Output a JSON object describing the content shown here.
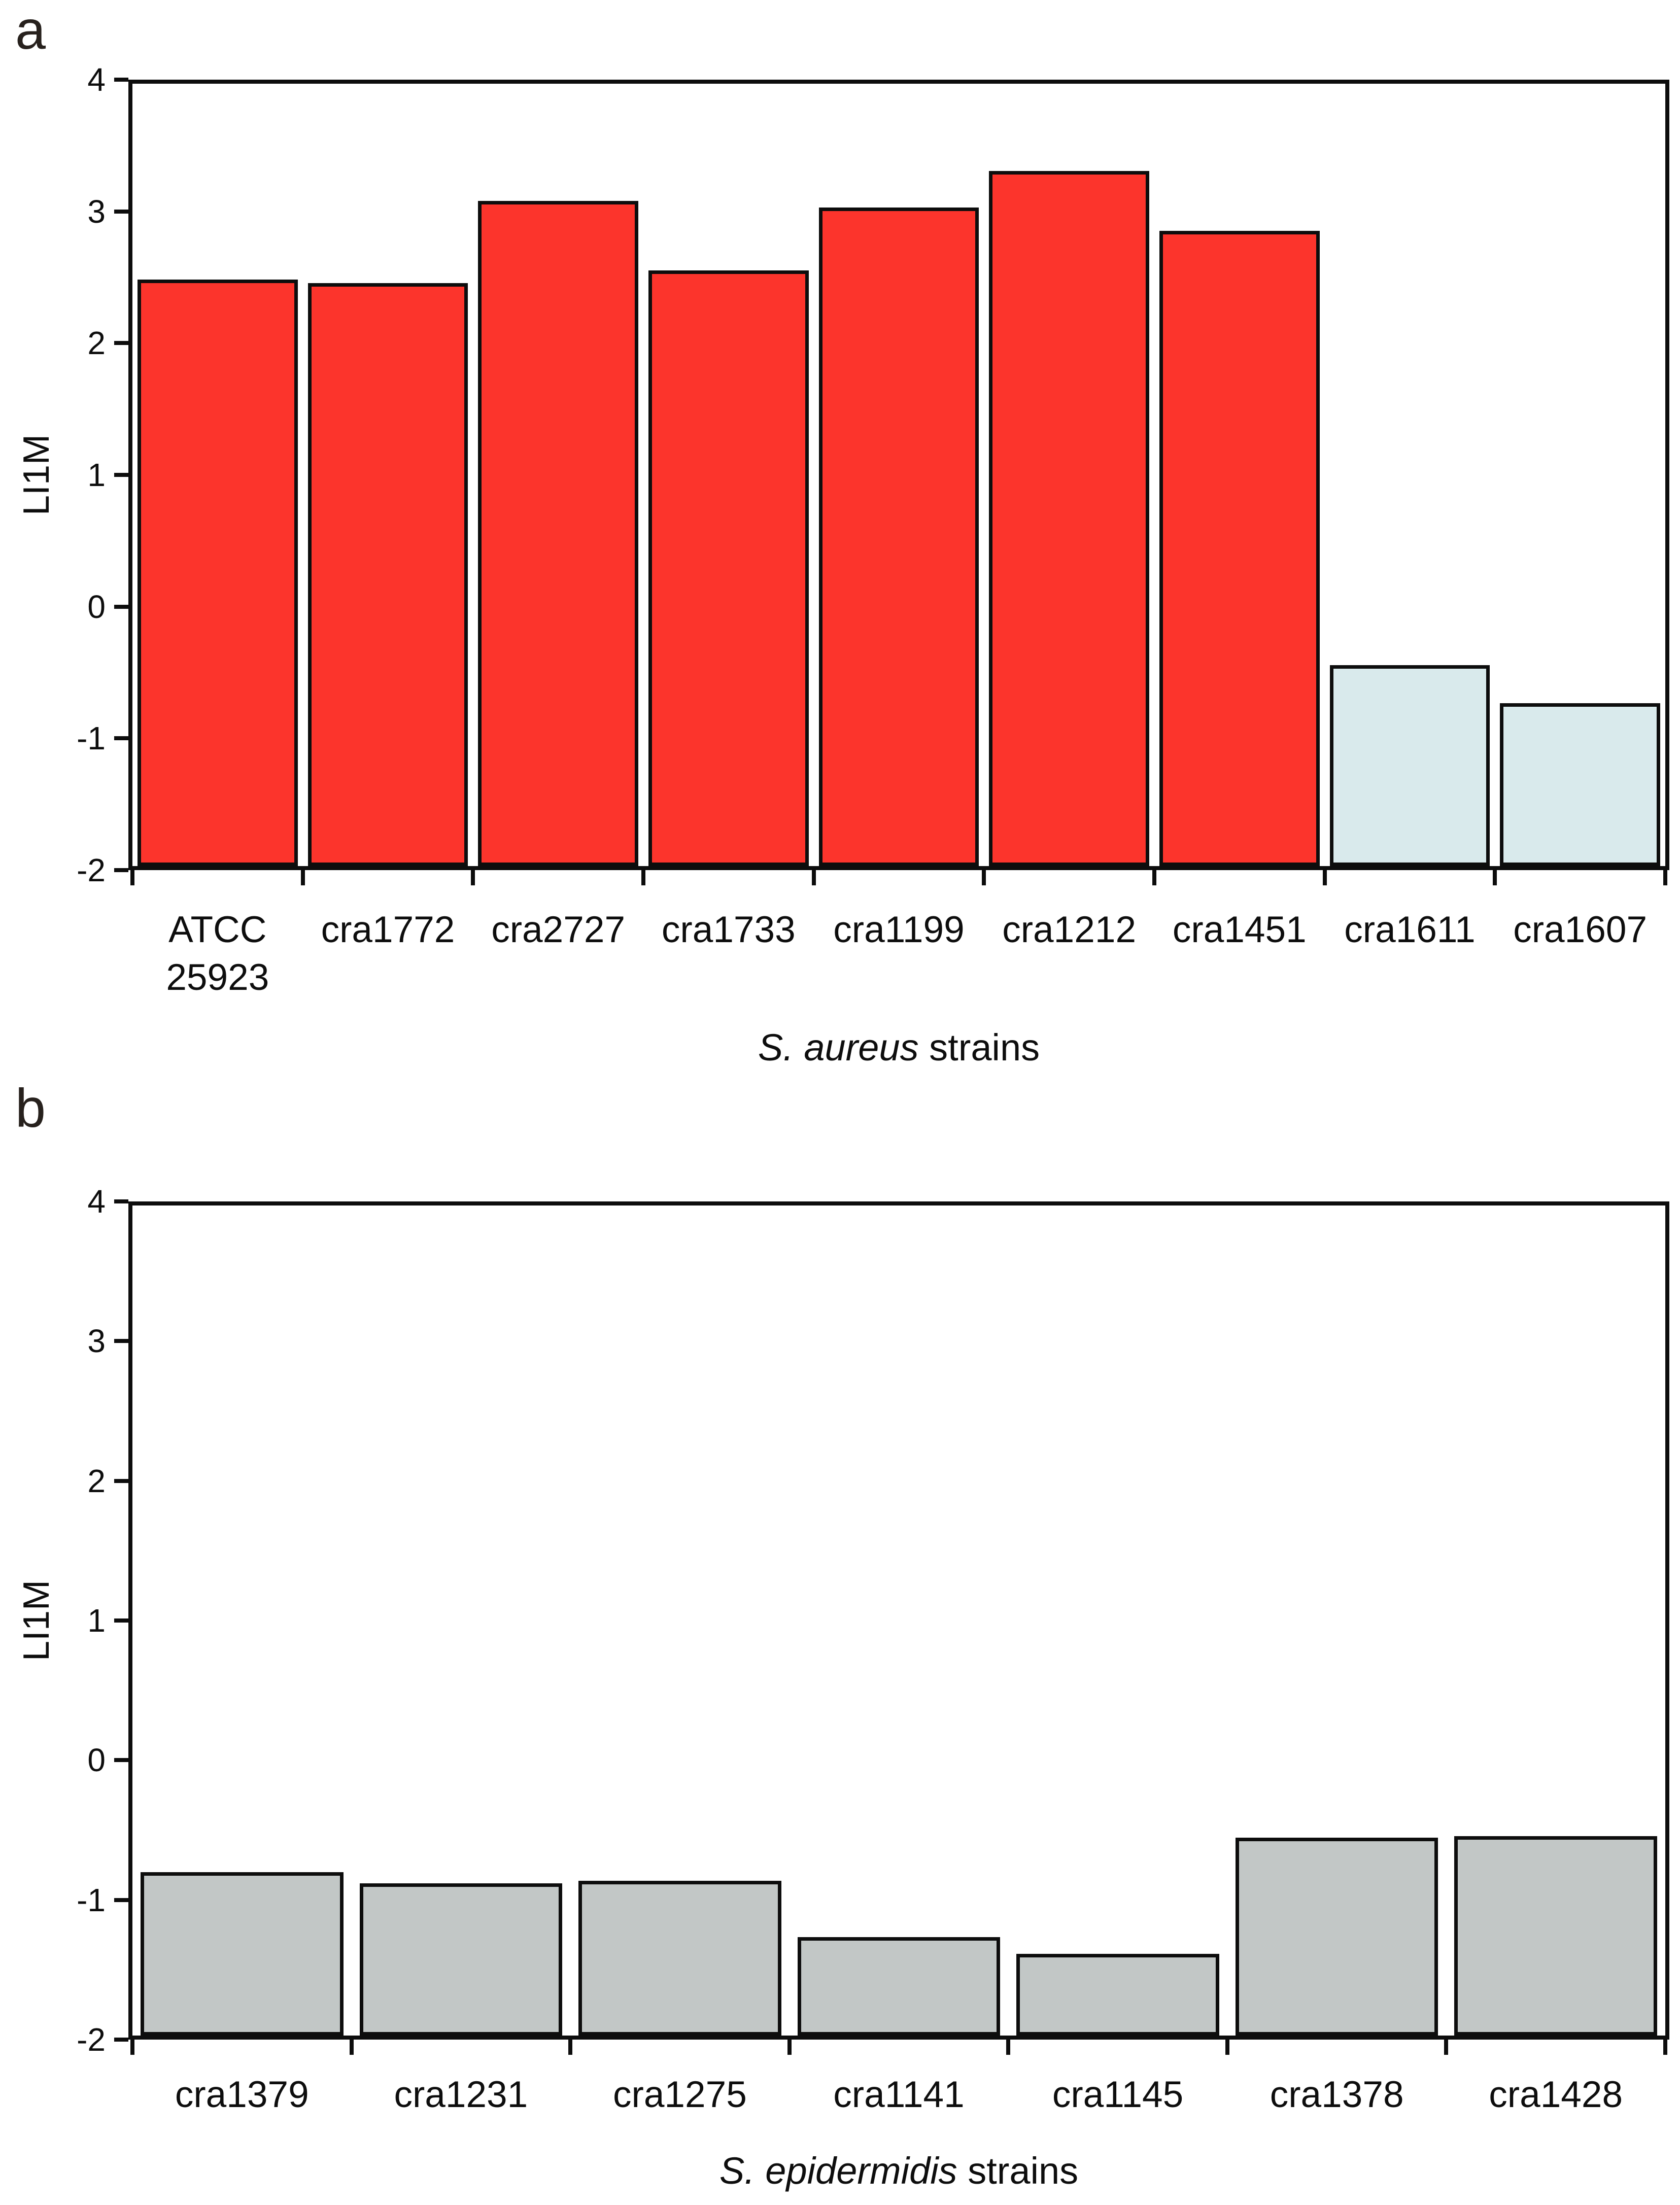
{
  "page": {
    "background": "#ffffff"
  },
  "panels": [
    {
      "panel_label": "a",
      "y_axis_label": "LI1M",
      "x_axis_title_italic": "S. aureus",
      "x_axis_title_regular": " strains"
    },
    {
      "panel_label": "b",
      "y_axis_label": "LI1M",
      "x_axis_title_italic": "S. epidermidis",
      "x_axis_title_regular": " strains"
    }
  ],
  "chart_data": [
    {
      "type": "bar",
      "title": "",
      "xlabel": "S. aureus strains",
      "ylabel": "LI1M",
      "ylim": [
        -2,
        4
      ],
      "yticks": [
        4,
        3,
        2,
        1,
        0,
        -1,
        -2
      ],
      "bar_baseline": -2,
      "grid": false,
      "legend": false,
      "categories": [
        "ATCC\n25923",
        "cra1772",
        "cra2727",
        "cra1733",
        "cra1199",
        "cra1212",
        "cra1451",
        "cra1611",
        "cra1607"
      ],
      "values": [
        2.5,
        2.47,
        3.1,
        2.57,
        3.05,
        3.33,
        2.87,
        -0.46,
        -0.75
      ],
      "bar_colors": [
        "#fc342c",
        "#fc342c",
        "#fc342c",
        "#fc342c",
        "#fc342c",
        "#fc342c",
        "#fc342c",
        "#d9eaec",
        "#d9eaec"
      ],
      "bar_outline_color": "#0d0d0d"
    },
    {
      "type": "bar",
      "title": "",
      "xlabel": "S. epidermidis strains",
      "ylabel": "LI1M",
      "ylim": [
        -2,
        4
      ],
      "yticks": [
        4,
        3,
        2,
        1,
        0,
        -1,
        -2
      ],
      "bar_baseline": -2,
      "grid": false,
      "legend": false,
      "categories": [
        "cra1379",
        "cra1231",
        "cra1275",
        "cra1141",
        "cra1145",
        "cra1378",
        "cra1428"
      ],
      "values": [
        -0.82,
        -0.9,
        -0.88,
        -1.29,
        -1.41,
        -0.57,
        -0.56
      ],
      "bar_colors": [
        "#c2c7c6",
        "#c2c7c6",
        "#c2c7c6",
        "#c2c7c6",
        "#c2c7c6",
        "#c2c7c6",
        "#c2c7c6"
      ],
      "bar_outline_color": "#0d0d0d"
    }
  ]
}
